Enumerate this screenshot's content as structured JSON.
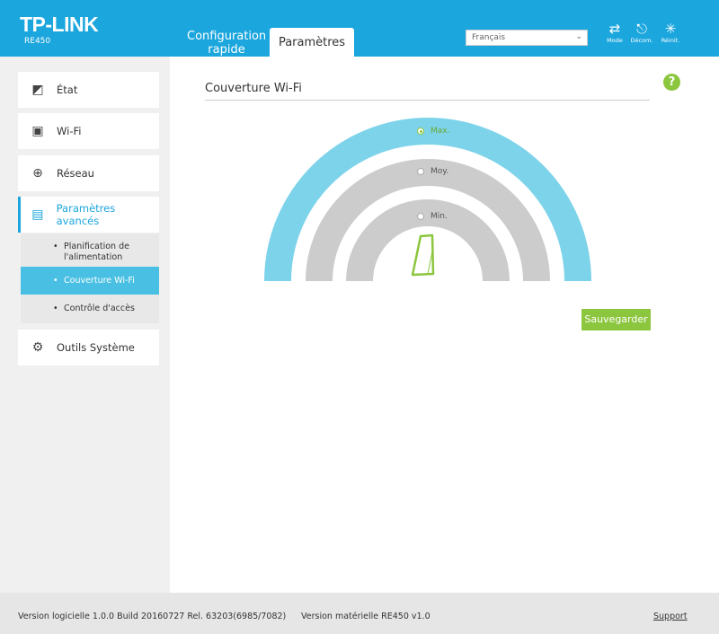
{
  "header": {
    "brand": "TP-LINK",
    "model": "RE450",
    "tabs": [
      {
        "label": "Configuration rapide",
        "active": false
      },
      {
        "label": "Paramètres",
        "active": true
      }
    ],
    "language": "Français",
    "buttons": [
      {
        "label": "Mode",
        "icon": "switch-mode-icon"
      },
      {
        "label": "Décom.",
        "icon": "logout-icon"
      },
      {
        "label": "Réinit.",
        "icon": "reboot-icon"
      }
    ]
  },
  "sidebar": {
    "items": [
      {
        "label": "État",
        "icon": "status-icon"
      },
      {
        "label": "Wi-Fi",
        "icon": "wifi-icon"
      },
      {
        "label": "Réseau",
        "icon": "globe-icon"
      },
      {
        "label": "Paramètres avancés",
        "icon": "advanced-icon",
        "active": true
      },
      {
        "label": "Outils Système",
        "icon": "gear-icon"
      }
    ],
    "subitems": [
      {
        "label": "Planification de l'alimentation"
      },
      {
        "label": "Couverture Wi-Fi",
        "selected": true
      },
      {
        "label": "Contrôle d'accès"
      }
    ]
  },
  "main": {
    "title": "Couverture Wi-Fi",
    "help": "?",
    "options": [
      {
        "label": "Max.",
        "selected": true
      },
      {
        "label": "Moy.",
        "selected": false
      },
      {
        "label": "Min.",
        "selected": false
      }
    ],
    "save_label": "Sauvegarder",
    "colors": {
      "active_arc": "#7dd3ea",
      "inactive_arc": "#cccccc",
      "accent": "#8cc63f",
      "header": "#1ba6dd"
    }
  },
  "footer": {
    "software": "Version logicielle 1.0.0 Build 20160727 Rel. 63203(6985/7082)",
    "hardware": "Version matérielle RE450 v1.0",
    "support": "Support"
  }
}
